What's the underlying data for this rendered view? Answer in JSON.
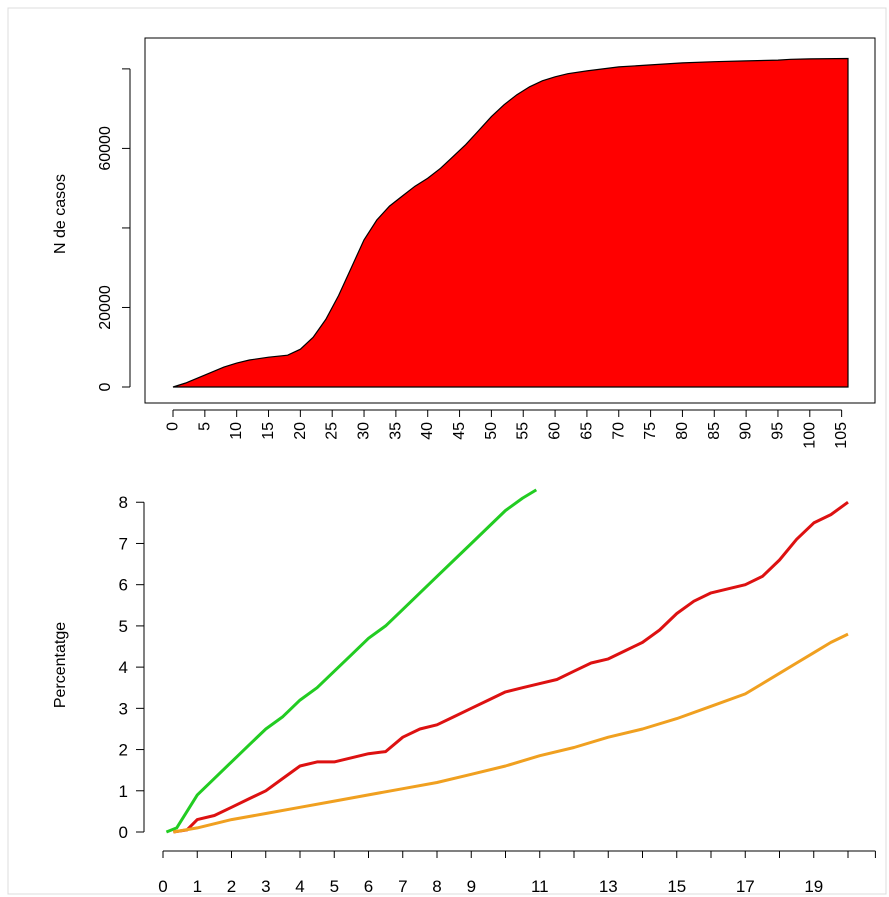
{
  "chart_data": [
    {
      "type": "area",
      "title": "",
      "xlabel": "",
      "ylabel": "N de casos",
      "xlim": [
        0,
        106
      ],
      "ylim": [
        0,
        85000
      ],
      "xticks": [
        "0",
        "5",
        "10",
        "15",
        "20",
        "25",
        "30",
        "35",
        "40",
        "45",
        "50",
        "55",
        "60",
        "65",
        "70",
        "75",
        "80",
        "85",
        "90",
        "95",
        "100",
        "105"
      ],
      "yticks": [
        "0",
        "20000",
        "60000"
      ],
      "fill_color": "#ff0000",
      "x": [
        0,
        2,
        5,
        8,
        10,
        12,
        15,
        18,
        20,
        22,
        24,
        26,
        28,
        30,
        32,
        34,
        36,
        38,
        40,
        42,
        44,
        46,
        48,
        50,
        52,
        54,
        56,
        58,
        60,
        62,
        65,
        70,
        75,
        80,
        85,
        90,
        95,
        97,
        100,
        106
      ],
      "values": [
        0,
        1000,
        3000,
        5000,
        6000,
        6800,
        7500,
        8000,
        9500,
        12500,
        17000,
        23000,
        30000,
        37000,
        42000,
        45500,
        48000,
        50500,
        52500,
        55000,
        58000,
        61000,
        64500,
        68000,
        71000,
        73500,
        75500,
        77000,
        78000,
        78800,
        79500,
        80500,
        81000,
        81500,
        81800,
        82000,
        82200,
        82400,
        82500,
        82600
      ]
    },
    {
      "type": "line",
      "title": "",
      "xlabel": "",
      "ylabel": "Percentatge",
      "xlim": [
        0,
        20
      ],
      "ylim": [
        0,
        8.2
      ],
      "yticks": [
        "0",
        "1",
        "2",
        "3",
        "4",
        "5",
        "6",
        "7",
        "8"
      ],
      "xticks": [
        "0",
        "1",
        "2",
        "3",
        "4",
        "5",
        "6",
        "7",
        "8",
        "9",
        "11",
        "13",
        "15",
        "17",
        "19"
      ],
      "series": [
        {
          "color": "#22cc22",
          "x": [
            0.1,
            0.4,
            0.7,
            1.0,
            1.5,
            2.0,
            2.5,
            3.0,
            3.5,
            4.0,
            4.5,
            5.0,
            5.5,
            6.0,
            6.5,
            7.0,
            7.5,
            8.0,
            8.5,
            9.0,
            9.5,
            10.0,
            10.5,
            10.9
          ],
          "values": [
            0.0,
            0.1,
            0.5,
            0.9,
            1.3,
            1.7,
            2.1,
            2.5,
            2.8,
            3.2,
            3.5,
            3.9,
            4.3,
            4.7,
            5.0,
            5.4,
            5.8,
            6.2,
            6.6,
            7.0,
            7.4,
            7.8,
            8.1,
            8.3
          ]
        },
        {
          "color": "#dd1111",
          "x": [
            0.3,
            0.7,
            1.0,
            1.5,
            2.0,
            2.5,
            3.0,
            3.5,
            4.0,
            4.5,
            5.0,
            5.5,
            6.0,
            6.5,
            7.0,
            7.5,
            8.0,
            8.5,
            9.0,
            9.5,
            10.0,
            10.5,
            11.0,
            11.5,
            12.0,
            12.5,
            13.0,
            13.5,
            14.0,
            14.5,
            15.0,
            15.5,
            16.0,
            16.5,
            17.0,
            17.5,
            18.0,
            18.5,
            19.0,
            19.5,
            20.0
          ],
          "values": [
            0.0,
            0.05,
            0.3,
            0.4,
            0.6,
            0.8,
            1.0,
            1.3,
            1.6,
            1.7,
            1.7,
            1.8,
            1.9,
            1.95,
            2.3,
            2.5,
            2.6,
            2.8,
            3.0,
            3.2,
            3.4,
            3.5,
            3.6,
            3.7,
            3.9,
            4.1,
            4.2,
            4.4,
            4.6,
            4.9,
            5.3,
            5.6,
            5.8,
            5.9,
            6.0,
            6.2,
            6.6,
            7.1,
            7.5,
            7.7,
            8.0
          ]
        },
        {
          "color": "#f0a020",
          "x": [
            0.3,
            1.0,
            2.0,
            3.0,
            4.0,
            5.0,
            6.0,
            7.0,
            8.0,
            9.0,
            10.0,
            11.0,
            12.0,
            13.0,
            14.0,
            15.0,
            16.0,
            17.0,
            17.5,
            18.0,
            18.5,
            19.0,
            19.5,
            20.0
          ],
          "values": [
            0.0,
            0.1,
            0.3,
            0.45,
            0.6,
            0.75,
            0.9,
            1.05,
            1.2,
            1.4,
            1.6,
            1.85,
            2.05,
            2.3,
            2.5,
            2.75,
            3.05,
            3.35,
            3.6,
            3.85,
            4.1,
            4.35,
            4.6,
            4.8
          ]
        }
      ]
    }
  ]
}
